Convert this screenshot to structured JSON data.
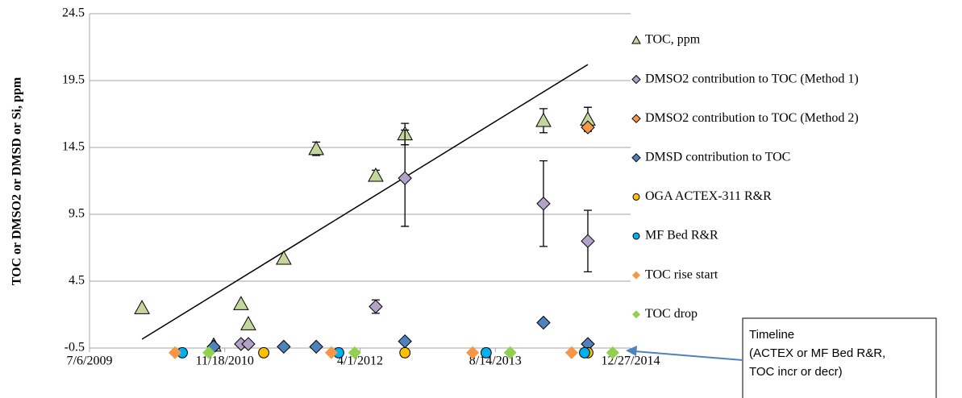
{
  "chart_data": {
    "type": "scatter",
    "y_label": "TOC or DMSO2 or DMSD or Si, ppm",
    "xlim": [
      40000,
      42000
    ],
    "xticks": [
      {
        "value": 40000,
        "label": "7/6/2009"
      },
      {
        "value": 40500,
        "label": "11/18/2010"
      },
      {
        "value": 41000,
        "label": "4/1/2012"
      },
      {
        "value": 41500,
        "label": "8/14/2013"
      },
      {
        "value": 42000,
        "label": "12/27/2014"
      }
    ],
    "ylim": [
      -0.5,
      24.5
    ],
    "yticks": [
      -0.5,
      4.5,
      9.5,
      14.5,
      19.5,
      24.5
    ],
    "grid": true,
    "legend": "right",
    "series": [
      {
        "name": "TOC, ppm",
        "color": "#c3d69b",
        "marker": "triangle",
        "x": [
          40194,
          40459,
          40560,
          40587,
          40718,
          40838,
          41058,
          41166,
          41678,
          41842
        ],
        "values": [
          2.5,
          -0.3,
          2.8,
          1.3,
          6.2,
          14.4,
          12.4,
          15.5,
          16.5,
          16.6
        ],
        "errors": [
          null,
          null,
          null,
          null,
          null,
          0.5,
          0.4,
          0.8,
          0.9,
          0.9
        ]
      },
      {
        "name": "DMSO2 contribution to TOC (Method 1)",
        "color": "#b3a2c7",
        "marker": "diamond",
        "x": [
          40560,
          40587,
          41058,
          41166,
          41678,
          41842
        ],
        "values": [
          -0.2,
          -0.2,
          2.6,
          12.2,
          10.3,
          7.5
        ],
        "errors": [
          null,
          null,
          0.5,
          3.6,
          3.2,
          2.3
        ]
      },
      {
        "name": "DMSO2 contribution to TOC (Method 2)",
        "color": "#f79646",
        "marker": "diamond",
        "x": [
          41842
        ],
        "values": [
          16.0
        ]
      },
      {
        "name": "DMSD contribution to TOC",
        "color": "#4f81bd",
        "marker": "diamond",
        "x": [
          40459,
          40718,
          40838,
          41166,
          41678,
          41842
        ],
        "values": [
          -0.4,
          -0.4,
          -0.4,
          0.0,
          1.4,
          -0.2
        ]
      },
      {
        "name": "OGA ACTEX-311 R&R",
        "color": "#ffc000",
        "marker": "circle",
        "x": [
          40644,
          41166,
          41842
        ],
        "values": [
          -0.85,
          -0.85,
          -0.85
        ]
      },
      {
        "name": "MF Bed R&R",
        "color": "#00b0f0",
        "marker": "circle",
        "x": [
          40343,
          40921,
          41466,
          41830
        ],
        "values": [
          -0.85,
          -0.85,
          -0.85,
          -0.85
        ]
      },
      {
        "name": "TOC rise start",
        "color": "#f79646",
        "marker": "diamond-plain",
        "x": [
          40316,
          40894,
          41416,
          41782
        ],
        "values": [
          -0.85,
          -0.85,
          -0.85,
          -0.85
        ]
      },
      {
        "name": "TOC drop",
        "color": "#92d050",
        "marker": "diamond-plain",
        "x": [
          40441,
          40980,
          41555,
          41934
        ],
        "values": [
          -0.85,
          -0.85,
          -0.85,
          -0.85
        ]
      }
    ],
    "trendline": {
      "x": [
        40194,
        41842
      ],
      "values": [
        0.16,
        20.7
      ]
    },
    "annotation": [
      "Timeline",
      "(ACTEX or MF Bed R&R,",
      "TOC incr or decr)"
    ]
  }
}
